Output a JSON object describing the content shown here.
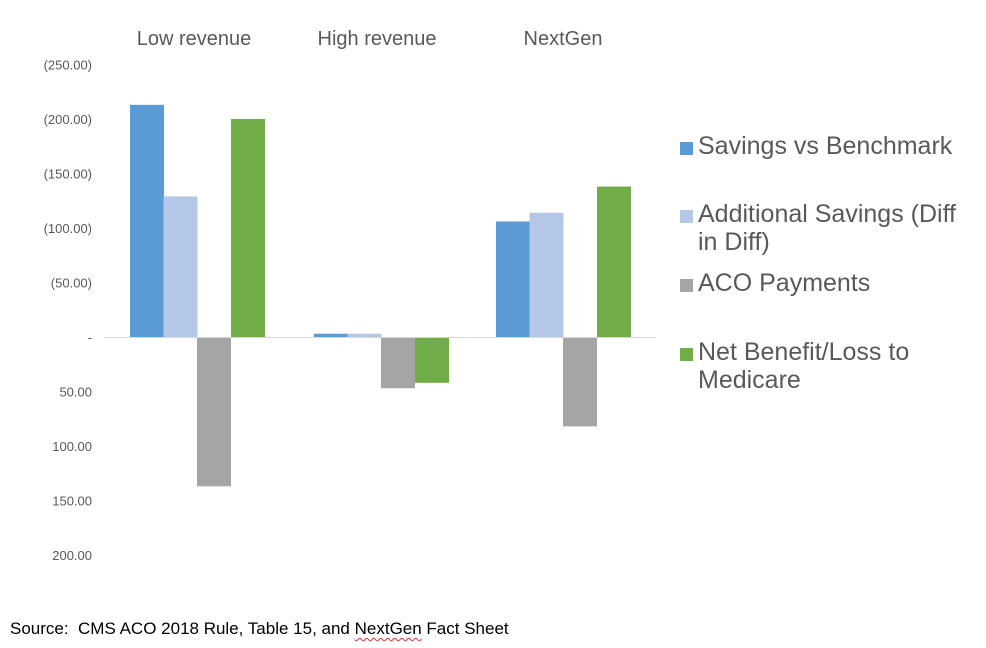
{
  "chart_data": {
    "type": "bar",
    "categories": [
      "Low revenue",
      "High revenue",
      "NextGen"
    ],
    "series": [
      {
        "name": "Savings vs Benchmark",
        "color": "#5b9bd5",
        "values": [
          -213,
          -3,
          -106
        ]
      },
      {
        "name": "Additional Savings (Diff in Diff)",
        "color": "#b4c7e7",
        "values": [
          -129,
          -3,
          -114
        ]
      },
      {
        "name": "ACO Payments",
        "color": "#a5a5a5",
        "values": [
          137,
          47,
          82
        ]
      },
      {
        "name": "Net Benefit/Loss to Medicare",
        "color": "#70ad47",
        "values": [
          -200,
          42,
          -138
        ]
      }
    ],
    "y_ticks": [
      {
        "value": -250,
        "label": "(250.00)"
      },
      {
        "value": -200,
        "label": "(200.00)"
      },
      {
        "value": -150,
        "label": "(150.00)"
      },
      {
        "value": -100,
        "label": "(100.00)"
      },
      {
        "value": -50,
        "label": "(50.00)"
      },
      {
        "value": 0,
        "label": "-"
      },
      {
        "value": 50,
        "label": "50.00"
      },
      {
        "value": 100,
        "label": "100.00"
      },
      {
        "value": 150,
        "label": "150.00"
      },
      {
        "value": 200,
        "label": "200.00"
      }
    ],
    "ylim": [
      -250,
      200
    ],
    "y_axis_reversed": true,
    "x_labels_position": "top",
    "grid": false,
    "legend_position": "right",
    "axis_line_color": "#d9d9d9"
  },
  "source_prefix": "Source:  CMS ACO 2018 Rule, Table 15, and ",
  "source_flagged": "NextGen",
  "source_suffix": " Fact Sheet"
}
